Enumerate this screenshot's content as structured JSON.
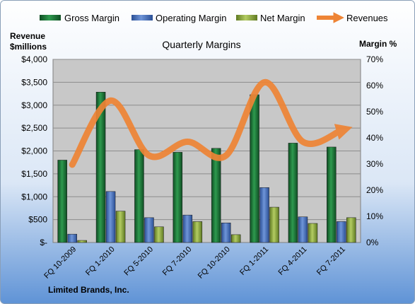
{
  "chart_data": {
    "type": "bar",
    "title": "Quarterly Margins",
    "company": "Limited Brands,  Inc.",
    "ylabel_left_line1": "Revenue",
    "ylabel_left_line2": "$millions",
    "ylabel_right": "Margin %",
    "categories": [
      "FQ 10-2009",
      "FQ 1-2010",
      "FQ 5-2010",
      "FQ 7-2010",
      "FQ 10-2010",
      "FQ 1-2011",
      "FQ 4-2011",
      "FQ 7-2011"
    ],
    "ylim_left": [
      0,
      4000
    ],
    "ylim_right": [
      0,
      70
    ],
    "y_left_ticks": [
      "$-",
      "$500",
      "$1,000",
      "$1,500",
      "$2,000",
      "$2,500",
      "$3,000",
      "$3,500",
      "$4,000"
    ],
    "y_right_ticks": [
      "0%",
      "10%",
      "20%",
      "30%",
      "40%",
      "50%",
      "60%",
      "70%"
    ],
    "grid": true,
    "legend_position": "top",
    "series": [
      {
        "name": "Gross Margin",
        "axis": "right",
        "color": "#1f7a3a",
        "values": [
          31.5,
          57.5,
          35.5,
          34.5,
          36.0,
          56.5,
          38.0,
          36.5
        ]
      },
      {
        "name": "Operating Margin",
        "axis": "right",
        "color": "#4472c4",
        "values": [
          3.2,
          19.5,
          9.5,
          10.5,
          7.5,
          21.0,
          9.8,
          8.0
        ]
      },
      {
        "name": "Net Margin",
        "axis": "right",
        "color": "#8aa83a",
        "values": [
          0.8,
          12.0,
          6.0,
          8.0,
          3.0,
          13.5,
          7.3,
          9.5
        ]
      },
      {
        "name": "Revenues",
        "axis": "left",
        "type": "line",
        "color": "#ee8435",
        "values": [
          1700,
          3100,
          1900,
          2200,
          1900,
          3500,
          2200,
          2450
        ]
      }
    ]
  }
}
